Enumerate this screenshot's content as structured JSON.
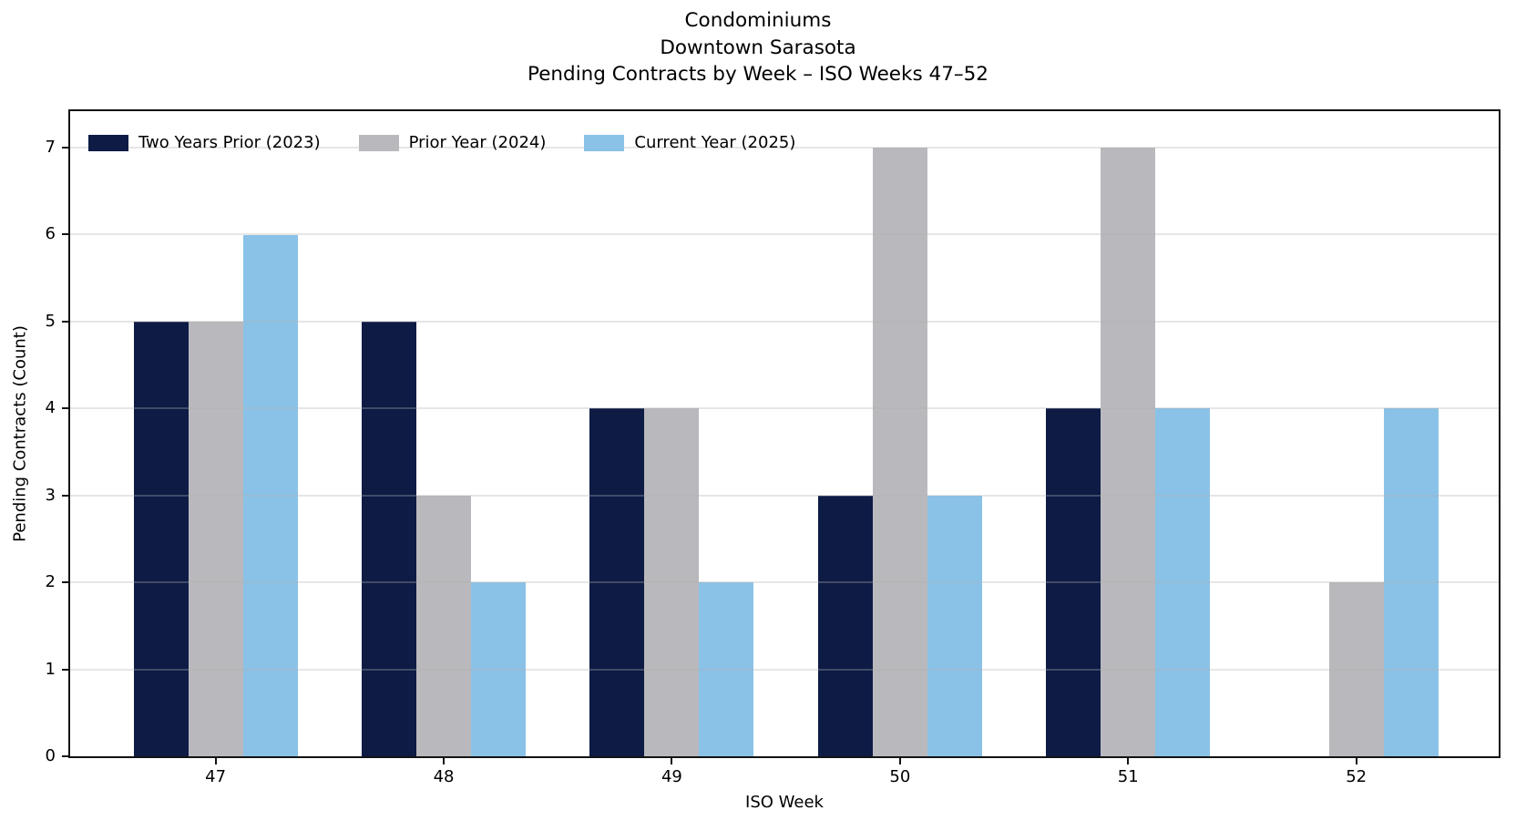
{
  "title": {
    "lines": [
      "Condominiums",
      "Downtown Sarasota",
      "Pending Contracts by Week – ISO Weeks 47–52"
    ]
  },
  "legend": {
    "items": [
      {
        "label": "Two Years Prior (2023)",
        "color": "#0d1b45"
      },
      {
        "label": "Prior Year (2024)",
        "color": "#b9b9bd"
      },
      {
        "label": "Current Year (2025)",
        "color": "#8ac2e7"
      }
    ]
  },
  "axes": {
    "xlabel": "ISO Week",
    "ylabel": "Pending Contracts (Count)"
  },
  "chart_data": {
    "type": "bar",
    "title": "Condominiums | Downtown Sarasota | Pending Contracts by Week – ISO Weeks 47–52",
    "categories": [
      "47",
      "48",
      "49",
      "50",
      "51",
      "52"
    ],
    "series": [
      {
        "name": "Two Years Prior (2023)",
        "color": "#0d1b45",
        "values": [
          5,
          5,
          4,
          3,
          4,
          0
        ]
      },
      {
        "name": "Prior Year (2024)",
        "color": "#b9b9bd",
        "values": [
          5,
          3,
          4,
          7,
          7,
          2
        ]
      },
      {
        "name": "Current Year (2025)",
        "color": "#8ac2e7",
        "values": [
          6,
          2,
          2,
          3,
          4,
          4
        ]
      }
    ],
    "xlabel": "ISO Week",
    "ylabel": "Pending Contracts (Count)",
    "yticks": [
      0,
      1,
      2,
      3,
      4,
      5,
      6,
      7
    ],
    "ylim": [
      0,
      7.42
    ],
    "grid": true,
    "grid_color": "#b0b0b0",
    "legend_position": "upper-left-horizontal",
    "background": "#ffffff",
    "spine_color": "#131313"
  }
}
